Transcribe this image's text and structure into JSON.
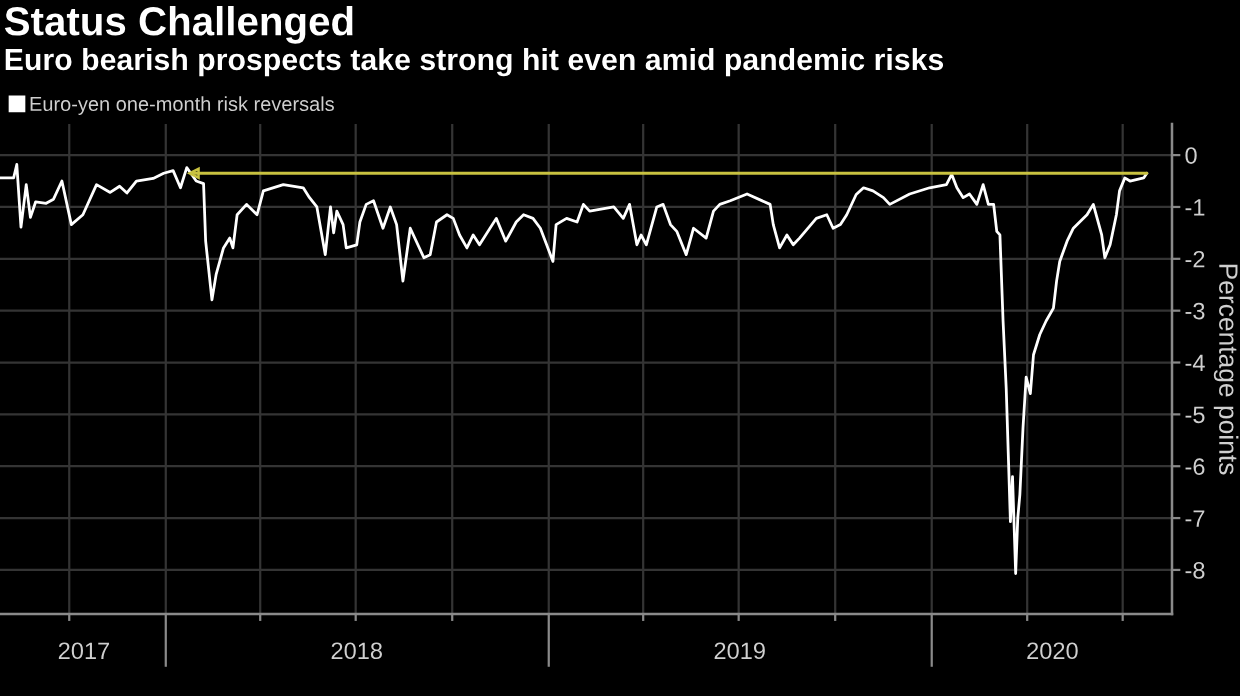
{
  "chart_data": {
    "type": "line",
    "title": "Status Challenged",
    "subtitle": "Euro bearish prospects take strong hit even amid pandemic risks",
    "ylabel": "Percentage points",
    "series": [
      {
        "name": "Euro-yen one-month risk reversals",
        "color": "#ffffff",
        "x": [
          "2017-07-27",
          "2017-08-09",
          "2017-08-12",
          "2017-08-16",
          "2017-08-21",
          "2017-08-25",
          "2017-08-30",
          "2017-09-09",
          "2017-09-16",
          "2017-09-24",
          "2017-10-03",
          "2017-10-14",
          "2017-10-27",
          "2017-11-09",
          "2017-11-18",
          "2017-11-25",
          "2017-12-04",
          "2017-12-20",
          "2017-12-30",
          "2018-01-08",
          "2018-01-15",
          "2018-01-21",
          "2018-01-30",
          "2018-02-06",
          "2018-02-08",
          "2018-02-14",
          "2018-02-18",
          "2018-02-25",
          "2018-03-03",
          "2018-03-06",
          "2018-03-10",
          "2018-03-19",
          "2018-03-29",
          "2018-04-04",
          "2018-04-23",
          "2018-05-12",
          "2018-05-18",
          "2018-05-25",
          "2018-06-02",
          "2018-06-07",
          "2018-06-10",
          "2018-06-13",
          "2018-06-19",
          "2018-06-22",
          "2018-07-02",
          "2018-07-05",
          "2018-07-11",
          "2018-07-18",
          "2018-07-27",
          "2018-08-03",
          "2018-08-09",
          "2018-08-15",
          "2018-08-22",
          "2018-09-04",
          "2018-09-10",
          "2018-09-16",
          "2018-09-26",
          "2018-10-02",
          "2018-10-08",
          "2018-10-15",
          "2018-10-21",
          "2018-10-27",
          "2018-11-12",
          "2018-11-21",
          "2018-12-01",
          "2018-12-08",
          "2018-12-17",
          "2018-12-24",
          "2018-12-30",
          "2019-01-05",
          "2019-01-08",
          "2019-01-18",
          "2019-01-28",
          "2019-02-03",
          "2019-02-09",
          "2019-03-04",
          "2019-03-13",
          "2019-03-19",
          "2019-03-26",
          "2019-03-30",
          "2019-04-04",
          "2019-04-14",
          "2019-04-20",
          "2019-04-27",
          "2019-05-03",
          "2019-05-12",
          "2019-05-19",
          "2019-05-31",
          "2019-06-07",
          "2019-06-13",
          "2019-06-23",
          "2019-07-09",
          "2019-07-31",
          "2019-08-03",
          "2019-08-09",
          "2019-08-16",
          "2019-08-22",
          "2019-08-28",
          "2019-09-13",
          "2019-09-23",
          "2019-09-29",
          "2019-10-06",
          "2019-10-12",
          "2019-10-21",
          "2019-10-28",
          "2019-11-06",
          "2019-11-16",
          "2019-11-22",
          "2019-12-11",
          "2019-12-30",
          "2020-01-15",
          "2020-01-20",
          "2020-01-25",
          "2020-01-31",
          "2020-02-06",
          "2020-02-13",
          "2020-02-19",
          "2020-02-24",
          "2020-02-29",
          "2020-03-03",
          "2020-03-06",
          "2020-03-09",
          "2020-03-12",
          "2020-03-16",
          "2020-03-18",
          "2020-03-21",
          "2020-03-23",
          "2020-03-25",
          "2020-03-28",
          "2020-03-31",
          "2020-04-04",
          "2020-04-07",
          "2020-04-13",
          "2020-04-19",
          "2020-04-26",
          "2020-04-29",
          "2020-05-02",
          "2020-05-09",
          "2020-05-15",
          "2020-05-21",
          "2020-05-28",
          "2020-06-03",
          "2020-06-11",
          "2020-06-14",
          "2020-06-19",
          "2020-06-25",
          "2020-06-28",
          "2020-07-03",
          "2020-07-08",
          "2020-07-21",
          "2020-07-24"
        ],
        "values": [
          -0.44,
          -0.44,
          -0.18,
          -1.39,
          -0.57,
          -1.2,
          -0.9,
          -0.93,
          -0.85,
          -0.5,
          -1.34,
          -1.15,
          -0.57,
          -0.72,
          -0.6,
          -0.73,
          -0.5,
          -0.45,
          -0.35,
          -0.3,
          -0.63,
          -0.24,
          -0.5,
          -0.55,
          -1.66,
          -2.79,
          -2.3,
          -1.79,
          -1.6,
          -1.79,
          -1.15,
          -0.95,
          -1.15,
          -0.69,
          -0.57,
          -0.63,
          -0.82,
          -1.0,
          -1.92,
          -1.0,
          -1.5,
          -1.08,
          -1.34,
          -1.79,
          -1.73,
          -1.29,
          -0.95,
          -0.88,
          -1.41,
          -1.0,
          -1.34,
          -2.43,
          -1.41,
          -1.98,
          -1.92,
          -1.29,
          -1.15,
          -1.22,
          -1.54,
          -1.79,
          -1.54,
          -1.73,
          -1.22,
          -1.66,
          -1.29,
          -1.15,
          -1.22,
          -1.41,
          -1.73,
          -2.05,
          -1.34,
          -1.22,
          -1.29,
          -0.95,
          -1.08,
          -1.0,
          -1.22,
          -0.95,
          -1.73,
          -1.54,
          -1.73,
          -1.0,
          -0.95,
          -1.34,
          -1.47,
          -1.92,
          -1.41,
          -1.6,
          -1.08,
          -0.95,
          -0.88,
          -0.75,
          -0.95,
          -1.34,
          -1.79,
          -1.54,
          -1.73,
          -1.6,
          -1.22,
          -1.15,
          -1.41,
          -1.34,
          -1.15,
          -0.76,
          -0.63,
          -0.69,
          -0.82,
          -0.95,
          -0.75,
          -0.63,
          -0.57,
          -0.37,
          -0.63,
          -0.82,
          -0.75,
          -0.95,
          -0.57,
          -0.95,
          -0.95,
          -1.47,
          -1.54,
          -3.2,
          -4.5,
          -7.07,
          -6.2,
          -8.07,
          -7.0,
          -6.55,
          -5.26,
          -4.28,
          -4.6,
          -3.85,
          -3.46,
          -3.2,
          -2.95,
          -2.43,
          -2.05,
          -1.66,
          -1.41,
          -1.29,
          -1.15,
          -0.95,
          -1.54,
          -1.98,
          -1.73,
          -1.15,
          -0.69,
          -0.44,
          -0.5,
          -0.44,
          -0.35
        ]
      },
      {
        "color": "#c9c240",
        "marker": "triangle",
        "x": [
          "2018-01-28",
          "2020-07-24"
        ],
        "values": [
          -0.35,
          -0.35
        ]
      }
    ],
    "xlim": [
      "2017-07-27",
      "2020-08-17"
    ],
    "xticks": [
      {
        "value": "2017-10-01",
        "label": null
      },
      {
        "value": "2018-01-01",
        "label": null
      },
      {
        "value": "2018-04-01",
        "label": null
      },
      {
        "value": "2018-07-01",
        "label": null
      },
      {
        "value": "2018-10-01",
        "label": null
      },
      {
        "value": "2019-01-01",
        "label": null
      },
      {
        "value": "2019-04-01",
        "label": null
      },
      {
        "value": "2019-07-01",
        "label": null
      },
      {
        "value": "2019-10-01",
        "label": null
      },
      {
        "value": "2020-01-01",
        "label": null
      },
      {
        "value": "2020-04-01",
        "label": null
      },
      {
        "value": "2020-07-01",
        "label": null
      },
      {
        "value": "2017-10-15",
        "label": "2017"
      },
      {
        "value": "2018-07-02",
        "label": "2018"
      },
      {
        "value": "2019-07-02",
        "label": "2019"
      },
      {
        "value": "2020-04-25",
        "label": "2020"
      }
    ],
    "ylim": [
      -8.85,
      0.6
    ],
    "yticks": [
      0,
      -1,
      -2,
      -3,
      -4,
      -5,
      -6,
      -7,
      -8
    ],
    "grid": true,
    "legend": "top left"
  }
}
